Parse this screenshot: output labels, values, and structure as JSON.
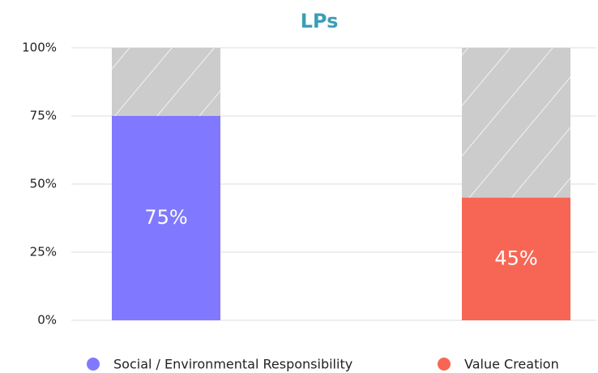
{
  "chart_data": {
    "type": "bar",
    "title": "LPs",
    "categories": [
      "Social / Environmental Responsibility",
      "Value Creation"
    ],
    "values": [
      75,
      45
    ],
    "value_labels": [
      "75%",
      "45%"
    ],
    "colors": [
      "#8079ff",
      "#f76654"
    ],
    "ylim": [
      0,
      100
    ],
    "yticks": [
      {
        "value": 0,
        "label": "0%"
      },
      {
        "value": 25,
        "label": "25%"
      },
      {
        "value": 50,
        "label": "50%"
      },
      {
        "value": 75,
        "label": "75%"
      },
      {
        "value": 100,
        "label": "100%"
      }
    ],
    "grid": true,
    "legend": "bottom"
  }
}
